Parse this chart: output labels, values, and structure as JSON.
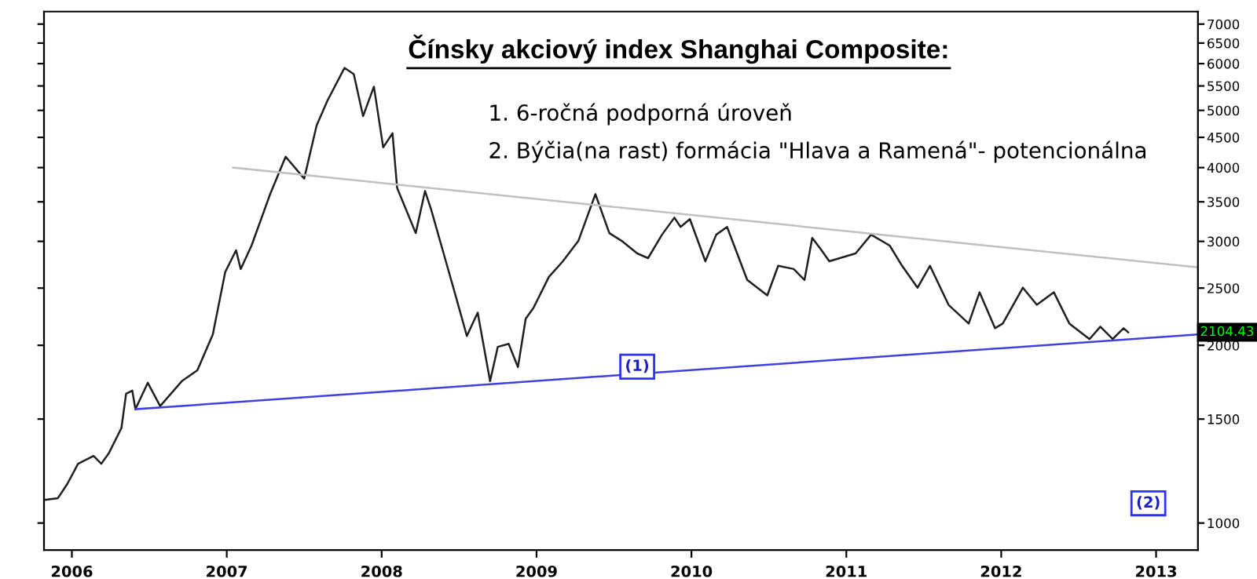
{
  "chart_data": {
    "type": "line",
    "title": "Čínsky akciový index Shanghai Composite:",
    "subtitle": "1. 6-ročná podporná úroveň\n2. Býčia(na rast) formácia \"Hlava a Ramená\"- potencionálna",
    "log": "y",
    "xlim": [
      2005.82,
      2013.27
    ],
    "xticks": [
      2006,
      2007,
      2008,
      2009,
      2010,
      2011,
      2012,
      2013
    ],
    "ylim": [
      900,
      7350
    ],
    "yticks": [
      1000,
      1500,
      2000,
      2500,
      3000,
      3500,
      4000,
      4500,
      5000,
      5500,
      6000,
      6500,
      7000
    ],
    "grid": false,
    "legend": false,
    "marker": "none",
    "line_style": "solid",
    "series": [
      {
        "color": "#202020",
        "x": [
          2005.83,
          2005.91,
          2005.97,
          2006.04,
          2006.14,
          2006.19,
          2006.24,
          2006.32,
          2006.35,
          2006.39,
          2006.41,
          2006.49,
          2006.57,
          2006.71,
          2006.81,
          2006.91,
          2006.99,
          2007.06,
          2007.09,
          2007.16,
          2007.28,
          2007.38,
          2007.5,
          2007.58,
          2007.65,
          2007.76,
          2007.82,
          2007.88,
          2007.95,
          2008.01,
          2008.07,
          2008.1,
          2008.22,
          2008.28,
          2008.32,
          2008.4,
          2008.48,
          2008.55,
          2008.62,
          2008.7,
          2008.75,
          2008.82,
          2008.88,
          2008.93,
          2008.98,
          2009.08,
          2009.17,
          2009.27,
          2009.38,
          2009.47,
          2009.55,
          2009.65,
          2009.72,
          2009.81,
          2009.89,
          2009.93,
          2009.99,
          2010.09,
          2010.16,
          2010.23,
          2010.36,
          2010.49,
          2010.56,
          2010.66,
          2010.73,
          2010.78,
          2010.84,
          2010.89,
          2011.06,
          2011.16,
          2011.28,
          2011.36,
          2011.46,
          2011.54,
          2011.66,
          2011.79,
          2011.86,
          2011.96,
          2012.01,
          2012.14,
          2012.23,
          2012.34,
          2012.44,
          2012.57,
          2012.64,
          2012.72,
          2012.79,
          2012.82
        ],
        "values": [
          1095,
          1102,
          1164,
          1260,
          1299,
          1260,
          1315,
          1449,
          1656,
          1676,
          1559,
          1728,
          1578,
          1739,
          1814,
          2087,
          2661,
          2897,
          2693,
          2951,
          3606,
          4173,
          3832,
          4713,
          5193,
          5900,
          5759,
          4888,
          5485,
          4328,
          4572,
          3695,
          3098,
          3651,
          3393,
          2862,
          2414,
          2074,
          2272,
          1739,
          1988,
          2012,
          1837,
          2218,
          2314,
          2612,
          2776,
          3005,
          3606,
          3098,
          3005,
          2862,
          2810,
          3079,
          3291,
          3174,
          3272,
          2776,
          3079,
          3174,
          2581,
          2430,
          2727,
          2693,
          2581,
          3041,
          2897,
          2776,
          2862,
          3079,
          2951,
          2727,
          2504,
          2727,
          2342,
          2177,
          2459,
          2138,
          2177,
          2504,
          2342,
          2459,
          2177,
          2049,
          2151,
          2049,
          2138,
          2104
        ]
      },
      {
        "type": "line",
        "color": "#4040e0",
        "x": [
          2006.41,
          2013.27
        ],
        "values": [
          1559,
          2087
        ]
      },
      {
        "type": "line",
        "color": "#c0c0c0",
        "x": [
          2007.04,
          2013.27
        ],
        "values": [
          4000,
          2710
        ]
      }
    ],
    "annotations": [
      {
        "text": "(1)",
        "x": 2009.65,
        "y": 1840
      },
      {
        "text": "(2)",
        "x": 2012.95,
        "y": 1080
      },
      {
        "text": "2104.43",
        "x": 2013.27,
        "y": 2104.43
      }
    ]
  }
}
